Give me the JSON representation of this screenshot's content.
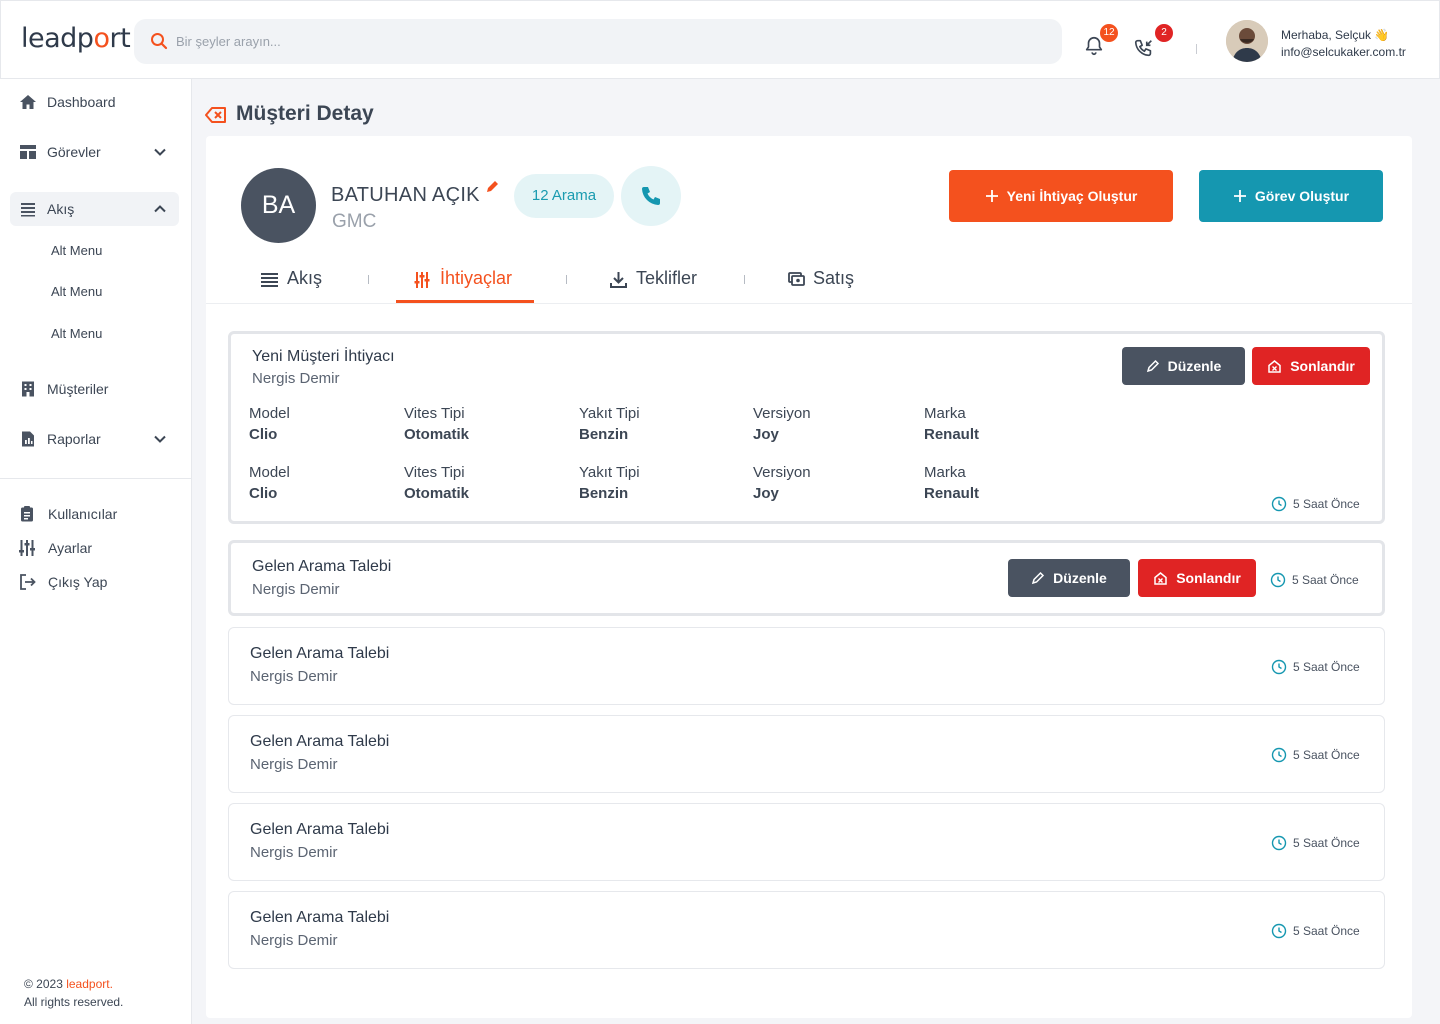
{
  "header": {
    "logo_part1": "leadp",
    "logo_o": "o",
    "logo_part2": "rt",
    "search_placeholder": "Bir şeyler arayın...",
    "notifications_count": "12",
    "calls_count": "2",
    "greeting": "Merhaba, Selçuk 👋",
    "email": "info@selcukaker.com.tr"
  },
  "sidebar": {
    "items": [
      {
        "label": "Dashboard",
        "icon": "home-icon"
      },
      {
        "label": "Görevler",
        "icon": "layout-icon"
      },
      {
        "label": "Akış",
        "icon": "list-icon"
      },
      {
        "label": "Müşteriler",
        "icon": "building-icon"
      },
      {
        "label": "Raporlar",
        "icon": "report-icon"
      }
    ],
    "sub_items": [
      "Alt Menu",
      "Alt Menu",
      "Alt Menu"
    ],
    "bottom_items": [
      {
        "label": "Kullanıcılar",
        "icon": "clipboard-icon"
      },
      {
        "label": "Ayarlar",
        "icon": "sliders-icon"
      },
      {
        "label": "Çıkış Yap",
        "icon": "logout-icon"
      }
    ],
    "copyright_prefix": "© 2023 ",
    "copyright_brand": "leadport.",
    "copyright_rest": "All rights reserved."
  },
  "page": {
    "title": "Müşteri Detay",
    "customer": {
      "initials": "BA",
      "name": "BATUHAN AÇIK",
      "company": "GMC",
      "call_count": "12 Arama"
    },
    "buttons": {
      "new_need": "Yeni İhtiyaç Oluştur",
      "new_task": "Görev Oluştur"
    },
    "tabs": [
      {
        "label": "Akış",
        "icon": "list-icon"
      },
      {
        "label": "İhtiyaçlar",
        "icon": "sliders-icon"
      },
      {
        "label": "Teklifler",
        "icon": "download-icon"
      },
      {
        "label": "Satış",
        "icon": "cash-icon"
      }
    ],
    "active_tab": "İhtiyaçlar",
    "actions": {
      "edit": "Düzenle",
      "close": "Sonlandır"
    },
    "cards": [
      {
        "title": "Yeni Müşteri İhtiyacı",
        "person": "Nergis Demir",
        "time": "5 Saat Önce",
        "rows": [
          [
            {
              "label": "Model",
              "value": "Clio"
            },
            {
              "label": "Vites Tipi",
              "value": "Otomatik"
            },
            {
              "label": "Yakıt Tipi",
              "value": "Benzin"
            },
            {
              "label": "Versiyon",
              "value": "Joy"
            },
            {
              "label": "Marka",
              "value": "Renault"
            }
          ],
          [
            {
              "label": "Model",
              "value": "Clio"
            },
            {
              "label": "Vites Tipi",
              "value": "Otomatik"
            },
            {
              "label": "Yakıt Tipi",
              "value": "Benzin"
            },
            {
              "label": "Versiyon",
              "value": "Joy"
            },
            {
              "label": "Marka",
              "value": "Renault"
            }
          ]
        ]
      },
      {
        "title": "Gelen Arama Talebi",
        "person": "Nergis Demir",
        "time": "5 Saat Önce"
      },
      {
        "title": "Gelen Arama Talebi",
        "person": "Nergis Demir",
        "time": "5 Saat Önce"
      },
      {
        "title": "Gelen Arama Talebi",
        "person": "Nergis Demir",
        "time": "5 Saat Önce"
      },
      {
        "title": "Gelen Arama Talebi",
        "person": "Nergis Demir",
        "time": "5 Saat Önce"
      },
      {
        "title": "Gelen Arama Talebi",
        "person": "Nergis Demir",
        "time": "5 Saat Önce"
      }
    ]
  },
  "colors": {
    "accent": "#f4511e",
    "teal": "#1597b0",
    "danger": "#e02424",
    "dark": "#4a5361"
  }
}
